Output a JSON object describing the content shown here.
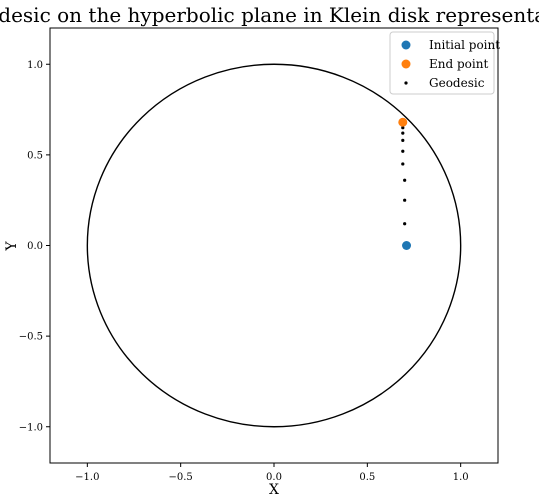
{
  "chart_data": {
    "type": "scatter",
    "title": "Geodesic on the hyperbolic plane in Klein disk representation",
    "xlabel": "X",
    "ylabel": "Y",
    "xlim": [
      -1.2,
      1.2
    ],
    "ylim": [
      -1.2,
      1.2
    ],
    "xticks": [
      -1.0,
      -0.5,
      0.0,
      0.5,
      1.0
    ],
    "yticks": [
      -1.0,
      -0.5,
      0.0,
      0.5,
      1.0
    ],
    "xtick_labels": [
      "−1.0",
      "−0.5",
      "0.0",
      "0.5",
      "1.0"
    ],
    "ytick_labels": [
      "−1.0",
      "−0.5",
      "0.0",
      "0.5",
      "1.0"
    ],
    "grid": false,
    "legend_position": "top-right",
    "boundary": {
      "shape": "unit-circle",
      "center": [
        0,
        0
      ],
      "radius": 1.0,
      "color": "#000000"
    },
    "series": [
      {
        "name": "Initial point",
        "color": "#1f77b4",
        "marker": "large",
        "x": [
          0.71
        ],
        "y": [
          0.0
        ]
      },
      {
        "name": "End point",
        "color": "#ff7f0e",
        "marker": "large",
        "x": [
          0.69
        ],
        "y": [
          0.68
        ]
      },
      {
        "name": "Geodesic",
        "color": "#000000",
        "marker": "small",
        "x": [
          0.7,
          0.7,
          0.7,
          0.69,
          0.69,
          0.69,
          0.69,
          0.69
        ],
        "y": [
          0.12,
          0.25,
          0.36,
          0.45,
          0.52,
          0.58,
          0.62,
          0.65
        ]
      }
    ]
  }
}
